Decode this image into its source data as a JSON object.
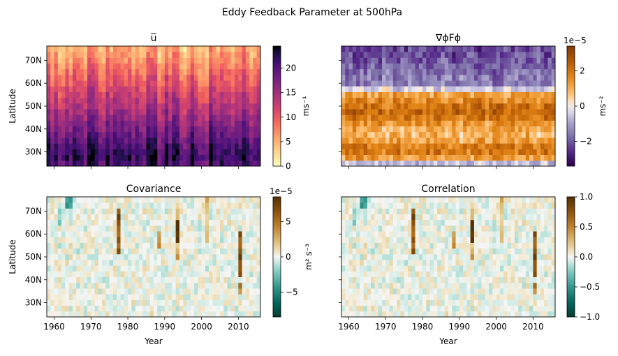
{
  "figure": {
    "title": "Eddy Feedback Parameter at 500hPa"
  },
  "chart_data": [
    {
      "type": "heatmap",
      "panel": "top-left",
      "title": "u̅",
      "title_overline_text": "u",
      "ylabel": "Latitude",
      "xlabel": "",
      "x_range": [
        1958,
        2016
      ],
      "y_range": [
        23.75,
        76.25
      ],
      "y_ticks": [
        "30N",
        "40N",
        "50N",
        "60N",
        "70N"
      ],
      "y_tick_values": [
        30,
        40,
        50,
        60,
        70
      ],
      "x_tick_values": [
        1960,
        1970,
        1980,
        1990,
        2000,
        2010
      ],
      "x_tick_labels_shown": false,
      "colormap": "magma_r",
      "colorbar": {
        "min": 0,
        "max": 24.5,
        "ticks": [
          0,
          5,
          10,
          15,
          20
        ],
        "tick_labels": [
          "0",
          "5",
          "10",
          "15",
          "20"
        ],
        "label": "ms⁻¹",
        "offset": ""
      },
      "value_description": "zonal-mean wind increasing equatorward; ~5 ms-1 at 75N to ~22 ms-1 at 30N with interannual variation"
    },
    {
      "type": "heatmap",
      "panel": "top-right",
      "title": "∇ϕFϕ",
      "ylabel": "",
      "xlabel": "",
      "x_range": [
        1958,
        2016
      ],
      "y_range": [
        23.75,
        76.25
      ],
      "y_tick_values": [
        30,
        40,
        50,
        60,
        70
      ],
      "x_tick_values": [
        1960,
        1970,
        1980,
        1990,
        2000,
        2010
      ],
      "x_tick_labels_shown": false,
      "y_tick_labels_shown": false,
      "colormap": "PuOr_r",
      "colorbar": {
        "min": -3.4,
        "max": 3.4,
        "ticks": [
          -2,
          0,
          2
        ],
        "tick_labels": [
          "−2",
          "0",
          "2"
        ],
        "label": "ms⁻²",
        "offset": "1e−5"
      },
      "value_description": "negative (purple) north of ~58N, positive (orange) between ~28N and ~57N with peaks near 48N and 31N, weakly negative near 25N"
    },
    {
      "type": "heatmap",
      "panel": "bottom-left",
      "title": "Covariance",
      "ylabel": "Latitude",
      "xlabel": "Year",
      "x_range": [
        1958,
        2016
      ],
      "y_range": [
        23.75,
        76.25
      ],
      "y_ticks": [
        "30N",
        "40N",
        "50N",
        "60N",
        "70N"
      ],
      "y_tick_values": [
        30,
        40,
        50,
        60,
        70
      ],
      "x_ticks": [
        "1960",
        "1970",
        "1980",
        "1990",
        "2000",
        "2010"
      ],
      "x_tick_values": [
        1960,
        1970,
        1980,
        1990,
        2000,
        2010
      ],
      "colormap": "BrBG_r",
      "colorbar": {
        "min": -8.5,
        "max": 8.5,
        "ticks": [
          -5,
          0,
          5
        ],
        "tick_labels": [
          "−5",
          "0",
          "5"
        ],
        "label": "m² s⁻³",
        "offset": "1e−5"
      },
      "value_description": "mostly near zero; strong positive streaks in 1977, 1993, 2010; weak negative near 75N in 1963"
    },
    {
      "type": "heatmap",
      "panel": "bottom-right",
      "title": "Correlation",
      "ylabel": "",
      "xlabel": "Year",
      "x_range": [
        1958,
        2016
      ],
      "y_range": [
        23.75,
        76.25
      ],
      "y_tick_values": [
        30,
        40,
        50,
        60,
        70
      ],
      "y_tick_labels_shown": false,
      "x_ticks": [
        "1960",
        "1970",
        "1980",
        "1990",
        "2000",
        "2010"
      ],
      "x_tick_values": [
        1960,
        1970,
        1980,
        1990,
        2000,
        2010
      ],
      "colormap": "BrBG_r",
      "colorbar": {
        "min": -1.0,
        "max": 1.0,
        "ticks": [
          -1.0,
          -0.5,
          0.0,
          0.5,
          1.0
        ],
        "tick_labels": [
          "−1.0",
          "−0.5",
          "0.0",
          "0.5",
          "1.0"
        ],
        "label": "",
        "offset": ""
      },
      "value_description": "mostly near zero; strong positive streaks in 1977, 1993, 2010; weak negative near 75N in 1963"
    }
  ]
}
